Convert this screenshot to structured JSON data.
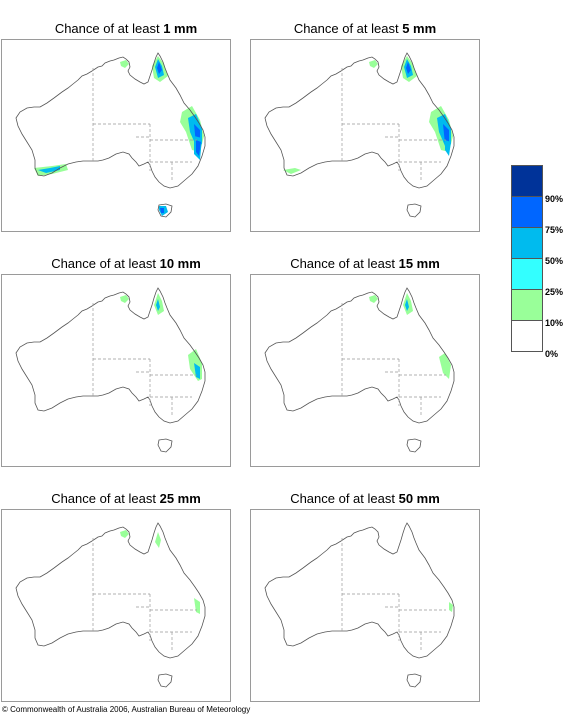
{
  "panels": [
    {
      "prefix": "Chance of at least ",
      "amount": "1 mm",
      "regions": [
        "north-qld",
        "east-qld",
        "south-qld-strong",
        "sw-wa",
        "tas",
        "top-end"
      ]
    },
    {
      "prefix": "Chance of at least ",
      "amount": "5 mm",
      "regions": [
        "north-qld",
        "east-qld",
        "south-qld-medium",
        "sw-wa-light",
        "top-end"
      ]
    },
    {
      "prefix": "Chance of at least ",
      "amount": "10 mm",
      "regions": [
        "north-qld-light",
        "east-qld-medium",
        "top-end"
      ]
    },
    {
      "prefix": "Chance of at least ",
      "amount": "15 mm",
      "regions": [
        "north-qld-light",
        "east-qld-light",
        "top-end"
      ]
    },
    {
      "prefix": "Chance of at least ",
      "amount": "25 mm",
      "regions": [
        "north-qld-small",
        "east-qld-small",
        "top-end"
      ]
    },
    {
      "prefix": "Chance of at least ",
      "amount": "50 mm",
      "regions": [
        "east-qld-tiny"
      ]
    }
  ],
  "legend": {
    "colors": [
      "#003399",
      "#0066ff",
      "#00bbee",
      "#33ffff",
      "#99ff99",
      "#ffffff"
    ],
    "labels": [
      "90%",
      "75%",
      "50%",
      "25%",
      "10%",
      "0%"
    ]
  },
  "copyright": "© Commonwealth of Australia 2006, Australian Bureau of Meteorology"
}
